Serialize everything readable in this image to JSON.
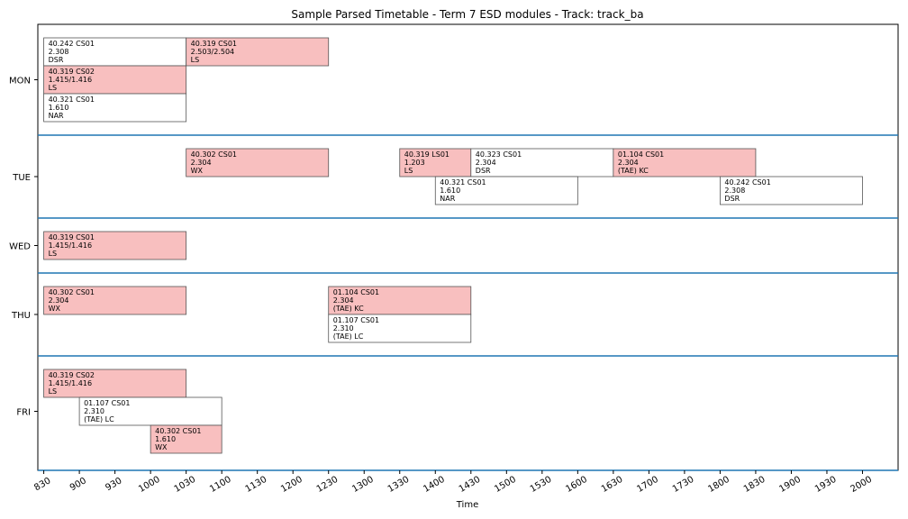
{
  "chart_data": {
    "type": "timeline",
    "title": "Sample Parsed Timetable - Term 7 ESD modules - Track: track_ba",
    "xlabel": "Time",
    "ylabel": "",
    "xlim": [
      825,
      2030
    ],
    "xticks": [
      "830",
      "900",
      "930",
      "1000",
      "1030",
      "1100",
      "1130",
      "1200",
      "1230",
      "1300",
      "1330",
      "1400",
      "1430",
      "1500",
      "1530",
      "1600",
      "1630",
      "1700",
      "1730",
      "1800",
      "1830",
      "1900",
      "1930",
      "2000"
    ],
    "days": [
      {
        "label": "MON",
        "lanes": 3
      },
      {
        "label": "TUE",
        "lanes": 2
      },
      {
        "label": "WED",
        "lanes": 1
      },
      {
        "label": "THU",
        "lanes": 2
      },
      {
        "label": "FRI",
        "lanes": 3
      }
    ],
    "colors": {
      "highlight": "#f8bfbf",
      "normal": "#ffffff",
      "border": "#555555",
      "separator": "#1f77b4"
    },
    "events": [
      {
        "day": "MON",
        "lane": 0,
        "start": "830",
        "end": "1030",
        "lines": [
          "40.242 CS01",
          "2.308",
          "DSR"
        ],
        "highlight": false
      },
      {
        "day": "MON",
        "lane": 0,
        "start": "1030",
        "end": "1230",
        "lines": [
          "40.319 CS01",
          "2.503/2.504",
          "LS"
        ],
        "highlight": true
      },
      {
        "day": "MON",
        "lane": 1,
        "start": "830",
        "end": "1030",
        "lines": [
          "40.319 CS02",
          "1.415/1.416",
          "LS"
        ],
        "highlight": true
      },
      {
        "day": "MON",
        "lane": 2,
        "start": "830",
        "end": "1030",
        "lines": [
          "40.321 CS01",
          "1.610",
          "NAR"
        ],
        "highlight": false
      },
      {
        "day": "TUE",
        "lane": 0,
        "start": "1030",
        "end": "1230",
        "lines": [
          "40.302 CS01",
          "2.304",
          "WX"
        ],
        "highlight": true
      },
      {
        "day": "TUE",
        "lane": 0,
        "start": "1330",
        "end": "1430",
        "lines": [
          "40.319 LS01",
          "1.203",
          "LS"
        ],
        "highlight": true
      },
      {
        "day": "TUE",
        "lane": 0,
        "start": "1430",
        "end": "1630",
        "lines": [
          "40.323 CS01",
          "2.304",
          "DSR"
        ],
        "highlight": false
      },
      {
        "day": "TUE",
        "lane": 0,
        "start": "1630",
        "end": "1830",
        "lines": [
          "01.104 CS01",
          "2.304",
          "(TAE) KC"
        ],
        "highlight": true
      },
      {
        "day": "TUE",
        "lane": 1,
        "start": "1400",
        "end": "1600",
        "lines": [
          "40.321 CS01",
          "1.610",
          "NAR"
        ],
        "highlight": false
      },
      {
        "day": "TUE",
        "lane": 1,
        "start": "1800",
        "end": "2000",
        "lines": [
          "40.242 CS01",
          "2.308",
          "DSR"
        ],
        "highlight": false
      },
      {
        "day": "WED",
        "lane": 0,
        "start": "830",
        "end": "1030",
        "lines": [
          "40.319 CS01",
          "1.415/1.416",
          "LS"
        ],
        "highlight": true
      },
      {
        "day": "THU",
        "lane": 0,
        "start": "830",
        "end": "1030",
        "lines": [
          "40.302 CS01",
          "2.304",
          "WX"
        ],
        "highlight": true
      },
      {
        "day": "THU",
        "lane": 0,
        "start": "1230",
        "end": "1430",
        "lines": [
          "01.104 CS01",
          "2.304",
          "(TAE) KC"
        ],
        "highlight": true
      },
      {
        "day": "THU",
        "lane": 1,
        "start": "1230",
        "end": "1430",
        "lines": [
          "01.107 CS01",
          "2.310",
          "(TAE) LC"
        ],
        "highlight": false
      },
      {
        "day": "FRI",
        "lane": 0,
        "start": "830",
        "end": "1030",
        "lines": [
          "40.319 CS02",
          "1.415/1.416",
          "LS"
        ],
        "highlight": true
      },
      {
        "day": "FRI",
        "lane": 1,
        "start": "900",
        "end": "1100",
        "lines": [
          "01.107 CS01",
          "2.310",
          "(TAE) LC"
        ],
        "highlight": false
      },
      {
        "day": "FRI",
        "lane": 2,
        "start": "1000",
        "end": "1100",
        "lines": [
          "40.302 CS01",
          "1.610",
          "WX"
        ],
        "highlight": true
      }
    ]
  }
}
